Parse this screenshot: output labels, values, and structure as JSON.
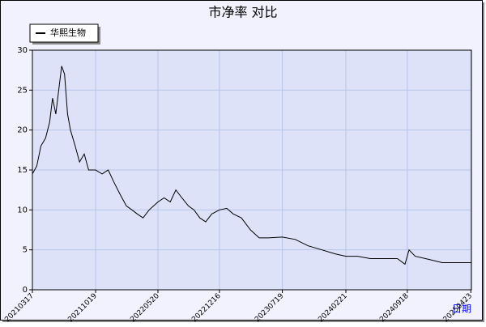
{
  "chart_data": {
    "type": "line",
    "title": "市净率  对比",
    "x_label": "日期",
    "x": [
      "2021-03-17",
      "2021-04-01",
      "2021-04-15",
      "2021-05-01",
      "2021-05-15",
      "2021-05-25",
      "2021-06-05",
      "2021-06-15",
      "2021-06-25",
      "2021-07-05",
      "2021-07-15",
      "2021-07-25",
      "2021-08-10",
      "2021-08-25",
      "2021-09-10",
      "2021-09-25",
      "2021-10-19",
      "2021-11-10",
      "2021-12-01",
      "2021-12-20",
      "2022-01-10",
      "2022-02-01",
      "2022-02-20",
      "2022-03-10",
      "2022-03-30",
      "2022-04-20",
      "2022-05-20",
      "2022-06-10",
      "2022-07-01",
      "2022-07-20",
      "2022-08-10",
      "2022-09-01",
      "2022-09-20",
      "2022-10-10",
      "2022-10-30",
      "2022-11-20",
      "2022-12-16",
      "2023-01-10",
      "2023-02-01",
      "2023-03-01",
      "2023-04-01",
      "2023-05-01",
      "2023-06-01",
      "2023-07-19",
      "2023-09-01",
      "2023-10-15",
      "2023-12-01",
      "2024-01-15",
      "2024-02-21",
      "2024-04-01",
      "2024-05-15",
      "2024-07-01",
      "2024-08-15",
      "2024-09-10",
      "2024-09-24",
      "2024-10-15",
      "2024-12-01",
      "2025-01-15",
      "2025-03-01",
      "2025-04-25"
    ],
    "series": [
      {
        "name": "华熙生物",
        "color": "#000000",
        "values": [
          14.5,
          15.5,
          18,
          19,
          21,
          24,
          22,
          25,
          28,
          27,
          22,
          20,
          18,
          16,
          17,
          15,
          15,
          14.5,
          15,
          13.5,
          12,
          10.5,
          10,
          9.5,
          9,
          10,
          11,
          11.5,
          11,
          12.5,
          11.5,
          10.5,
          10,
          9,
          8.5,
          9.5,
          10,
          10.2,
          9.5,
          9,
          7.5,
          6.5,
          6.5,
          6.6,
          6.3,
          5.5,
          5,
          4.5,
          4.2,
          4.2,
          3.9,
          3.9,
          3.9,
          3.2,
          5,
          4.2,
          3.8,
          3.4,
          3.4,
          3.4
        ]
      }
    ],
    "xlim": [
      "2021-03-17",
      "2025-04-25"
    ],
    "xticks": [
      {
        "value": "2021-03-17",
        "label": "20210317"
      },
      {
        "value": "2021-10-19",
        "label": "20211019"
      },
      {
        "value": "2022-05-20",
        "label": "20220520"
      },
      {
        "value": "2022-12-16",
        "label": "20221216"
      },
      {
        "value": "2023-07-19",
        "label": "20230719"
      },
      {
        "value": "2024-02-21",
        "label": "20240221"
      },
      {
        "value": "2024-09-18",
        "label": "20240918"
      },
      {
        "value": "2025-04-23",
        "label": "20250423"
      }
    ],
    "ylim": [
      0,
      30
    ],
    "yticks": [
      0,
      5,
      10,
      15,
      20,
      25,
      30
    ],
    "grid": true,
    "legend": "top-left"
  }
}
